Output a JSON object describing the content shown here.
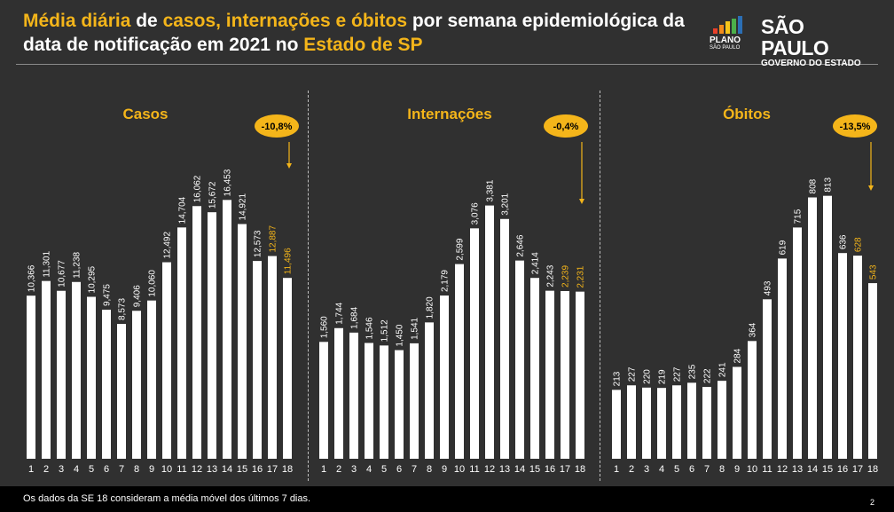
{
  "title": {
    "parts": [
      {
        "text": "Média diária",
        "color": "yellow"
      },
      {
        "text": " de ",
        "color": "white"
      },
      {
        "text": "casos, internações e óbitos",
        "color": "yellow"
      },
      {
        "text": " por semana epidemiológica da data de notificação em 2021 no ",
        "color": "white"
      },
      {
        "text": "Estado de SP",
        "color": "yellow"
      }
    ]
  },
  "logos": {
    "plano_line1": "PLANO",
    "plano_line2": "SÃO PAULO",
    "sp_line1": "SÃO PAULO",
    "sp_line2": "GOVERNO DO ESTADO"
  },
  "colors": {
    "background": "#303030",
    "accent": "#f4b51a",
    "bar": "#ffffff",
    "highlight_label": "#f4b51a"
  },
  "chart_data": [
    {
      "type": "bar",
      "title": "Casos",
      "categories": [
        "1",
        "2",
        "3",
        "4",
        "5",
        "6",
        "7",
        "8",
        "9",
        "10",
        "11",
        "12",
        "13",
        "14",
        "15",
        "16",
        "17",
        "18"
      ],
      "values": [
        10366,
        11301,
        10677,
        11238,
        10295,
        9475,
        8573,
        9406,
        10060,
        12492,
        14704,
        16062,
        15672,
        16453,
        14921,
        12573,
        12887,
        11496
      ],
      "value_labels": [
        "10,366",
        "11,301",
        "10,677",
        "11,238",
        "10,295",
        "9,475",
        "8,573",
        "9,406",
        "10,060",
        "12,492",
        "14,704",
        "16,062",
        "15,672",
        "16,453",
        "14,921",
        "12,573",
        "12,887",
        "11,496"
      ],
      "highlighted_labels": [
        16,
        17
      ],
      "change_badge": "-10,8%",
      "ylim": [
        0,
        22000
      ]
    },
    {
      "type": "bar",
      "title": "Internações",
      "categories": [
        "1",
        "2",
        "3",
        "4",
        "5",
        "6",
        "7",
        "8",
        "9",
        "10",
        "11",
        "12",
        "13",
        "14",
        "15",
        "16",
        "17",
        "18"
      ],
      "values": [
        1560,
        1744,
        1684,
        1546,
        1512,
        1450,
        1541,
        1820,
        2179,
        2599,
        3076,
        3381,
        3201,
        2646,
        2414,
        2243,
        2239,
        2231
      ],
      "value_labels": [
        "1,560",
        "1,744",
        "1,684",
        "1,546",
        "1,512",
        "1,450",
        "1,541",
        "1,820",
        "2,179",
        "2,599",
        "3,076",
        "3,381",
        "3,201",
        "2,646",
        "2,414",
        "2,243",
        "2,239",
        "2,231"
      ],
      "highlighted_labels": [
        16,
        17
      ],
      "change_badge": "-0,4%",
      "ylim": [
        0,
        4620
      ]
    },
    {
      "type": "bar",
      "title": "Óbitos",
      "categories": [
        "1",
        "2",
        "3",
        "4",
        "5",
        "6",
        "7",
        "8",
        "9",
        "10",
        "11",
        "12",
        "13",
        "14",
        "15",
        "16",
        "17",
        "18"
      ],
      "values": [
        213,
        227,
        220,
        219,
        227,
        235,
        222,
        241,
        284,
        364,
        493,
        619,
        715,
        808,
        813,
        636,
        628,
        543
      ],
      "value_labels": [
        "213",
        "227",
        "220",
        "219",
        "227",
        "235",
        "222",
        "241",
        "284",
        "364",
        "493",
        "619",
        "715",
        "808",
        "813",
        "636",
        "628",
        "543"
      ],
      "highlighted_labels": [
        16,
        17
      ],
      "change_badge": "-13,5%",
      "ylim": [
        0,
        1070
      ]
    }
  ],
  "footnote": "Os dados da SE 18 consideram a média móvel dos últimos 7 dias.",
  "page_number": "2"
}
